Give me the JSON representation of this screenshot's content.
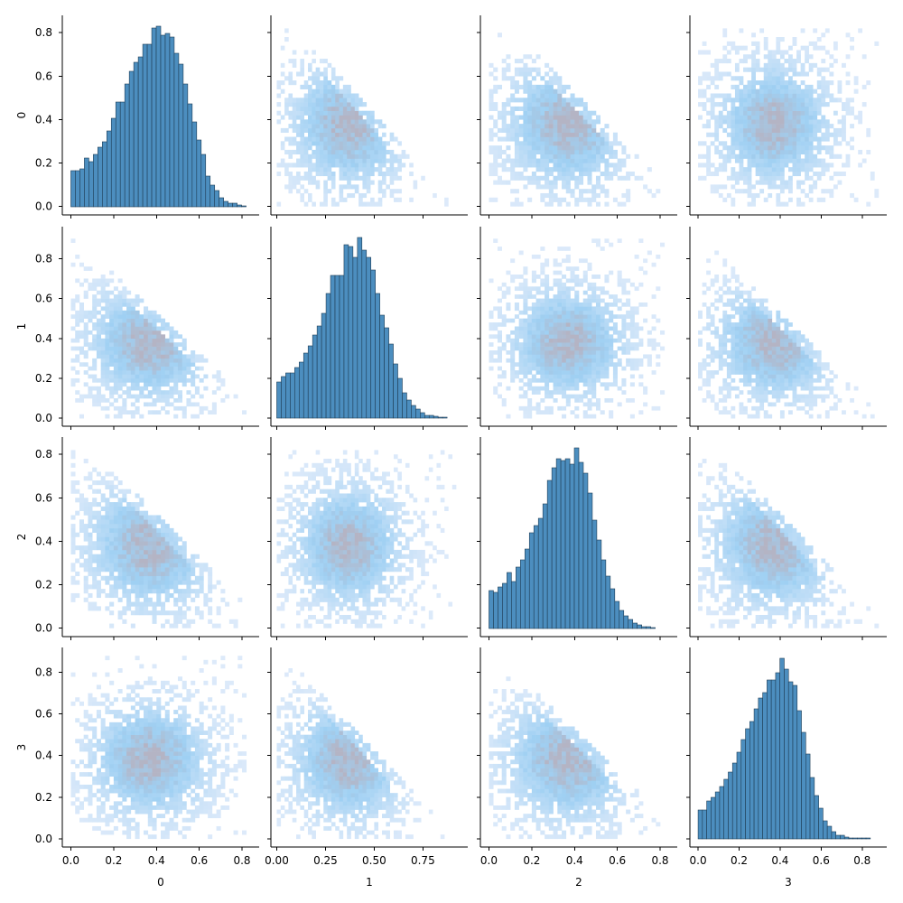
{
  "chart_data": {
    "type": "pairplot",
    "variables": [
      "0",
      "1",
      "2",
      "3"
    ],
    "diagonal": "histogram",
    "off_diagonal": "2d-histogram",
    "grid": false,
    "colors": {
      "hist_fill": "#4c8ebf",
      "hist_edge": "#1f3d55",
      "heat_low": "#ddeafa",
      "heat_mid": "#9fd0f3",
      "heat_high": "#b4b4c4"
    },
    "columns": [
      {
        "xlim": [
          -0.04,
          0.88
        ],
        "xticks": [
          0.0,
          0.2,
          0.4,
          0.6,
          0.8
        ],
        "xtick_labels": [
          "0.0",
          "0.2",
          "0.4",
          "0.6",
          "0.8"
        ]
      },
      {
        "xlim": [
          -0.03,
          0.98
        ],
        "xticks": [
          0.0,
          0.25,
          0.5,
          0.75
        ],
        "xtick_labels": [
          "0.00",
          "0.25",
          "0.50",
          "0.75"
        ]
      },
      {
        "xlim": [
          -0.04,
          0.88
        ],
        "xticks": [
          0.0,
          0.2,
          0.4,
          0.6,
          0.8
        ],
        "xtick_labels": [
          "0.0",
          "0.2",
          "0.4",
          "0.6",
          "0.8"
        ]
      },
      {
        "xlim": [
          -0.04,
          0.92
        ],
        "xticks": [
          0.0,
          0.2,
          0.4,
          0.6,
          0.8
        ],
        "xtick_labels": [
          "0.0",
          "0.2",
          "0.4",
          "0.6",
          "0.8"
        ]
      }
    ],
    "rows": [
      {
        "ylim": [
          -0.04,
          0.88
        ],
        "yticks": [
          0.0,
          0.2,
          0.4,
          0.6,
          0.8
        ],
        "ytick_labels": [
          "0.0",
          "0.2",
          "0.4",
          "0.6",
          "0.8"
        ]
      },
      {
        "ylim": [
          -0.04,
          0.96
        ],
        "yticks": [
          0.0,
          0.2,
          0.4,
          0.6,
          0.8
        ],
        "ytick_labels": [
          "0.0",
          "0.2",
          "0.4",
          "0.6",
          "0.8"
        ]
      },
      {
        "ylim": [
          -0.04,
          0.88
        ],
        "yticks": [
          0.0,
          0.2,
          0.4,
          0.6,
          0.8
        ],
        "ytick_labels": [
          "0.0",
          "0.2",
          "0.4",
          "0.6",
          "0.8"
        ]
      },
      {
        "ylim": [
          -0.04,
          0.92
        ],
        "yticks": [
          0.0,
          0.2,
          0.4,
          0.6,
          0.8
        ],
        "ytick_labels": [
          "0.0",
          "0.2",
          "0.4",
          "0.6",
          "0.8"
        ]
      }
    ],
    "histograms": [
      {
        "variable": "0",
        "bin_start": 0.0,
        "bin_width": 0.021,
        "relative_heights": [
          0.2,
          0.2,
          0.21,
          0.27,
          0.25,
          0.29,
          0.33,
          0.36,
          0.42,
          0.49,
          0.58,
          0.58,
          0.68,
          0.75,
          0.8,
          0.83,
          0.9,
          0.9,
          0.99,
          1.0,
          0.95,
          0.96,
          0.94,
          0.85,
          0.79,
          0.68,
          0.57,
          0.47,
          0.37,
          0.29,
          0.17,
          0.12,
          0.09,
          0.05,
          0.03,
          0.02,
          0.02,
          0.01,
          0.005
        ]
      },
      {
        "variable": "1",
        "bin_start": 0.0,
        "bin_width": 0.023,
        "relative_heights": [
          0.2,
          0.23,
          0.25,
          0.25,
          0.28,
          0.31,
          0.36,
          0.4,
          0.46,
          0.51,
          0.58,
          0.69,
          0.79,
          0.79,
          0.79,
          0.96,
          0.95,
          0.89,
          1.0,
          0.93,
          0.89,
          0.82,
          0.69,
          0.57,
          0.5,
          0.41,
          0.3,
          0.22,
          0.14,
          0.1,
          0.07,
          0.05,
          0.03,
          0.015,
          0.015,
          0.01,
          0.005,
          0.005
        ]
      },
      {
        "variable": "2",
        "bin_start": 0.0,
        "bin_width": 0.021,
        "relative_heights": [
          0.21,
          0.2,
          0.23,
          0.25,
          0.31,
          0.26,
          0.34,
          0.38,
          0.44,
          0.53,
          0.57,
          0.61,
          0.69,
          0.82,
          0.89,
          0.94,
          0.93,
          0.94,
          0.91,
          1.0,
          0.92,
          0.86,
          0.75,
          0.6,
          0.49,
          0.38,
          0.29,
          0.22,
          0.15,
          0.1,
          0.07,
          0.05,
          0.03,
          0.02,
          0.01,
          0.01,
          0.005
        ]
      },
      {
        "variable": "3",
        "bin_start": 0.0,
        "bin_width": 0.021,
        "relative_heights": [
          0.16,
          0.16,
          0.21,
          0.23,
          0.26,
          0.29,
          0.33,
          0.37,
          0.42,
          0.48,
          0.55,
          0.61,
          0.65,
          0.72,
          0.78,
          0.81,
          0.88,
          0.88,
          0.92,
          1.0,
          0.94,
          0.87,
          0.85,
          0.71,
          0.59,
          0.47,
          0.34,
          0.24,
          0.17,
          0.1,
          0.07,
          0.04,
          0.02,
          0.02,
          0.01,
          0.005,
          0.005,
          0.005,
          0.005,
          0.005
        ]
      }
    ],
    "density_2d": {
      "cell_size": 0.02,
      "typical_range": [
        0.0,
        0.72
      ],
      "peak_near": [
        0.37,
        0.38
      ],
      "negatively_correlated_pairs": [
        [
          "0",
          "1"
        ],
        [
          "0",
          "2"
        ],
        [
          "1",
          "3"
        ],
        [
          "2",
          "3"
        ]
      ],
      "independent_pairs": [
        [
          "0",
          "3"
        ],
        [
          "1",
          "2"
        ]
      ]
    }
  }
}
